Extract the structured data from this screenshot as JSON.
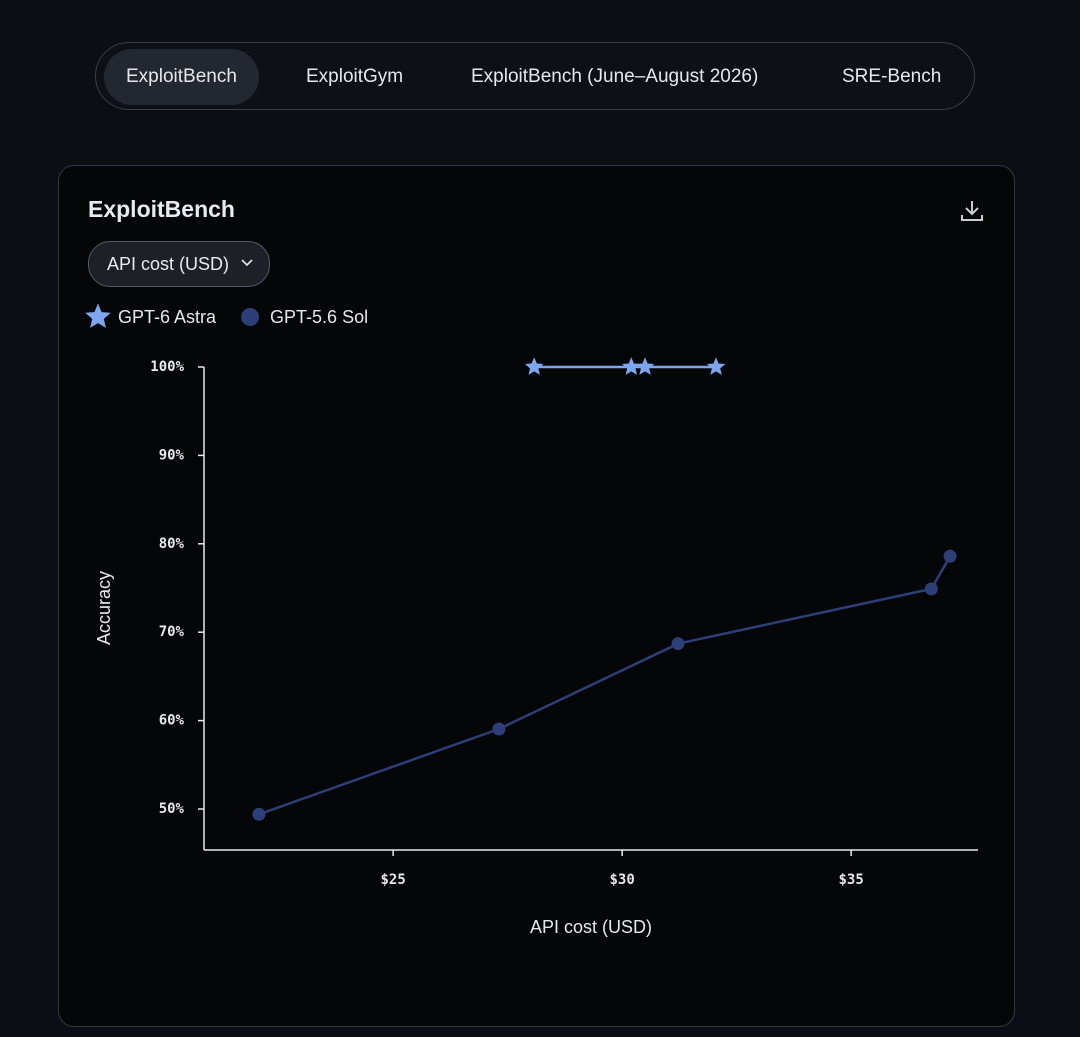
{
  "tabs": [
    "ExploitBench",
    "ExploitGym",
    "ExploitBench (June–August 2026)",
    "SRE-Bench"
  ],
  "active_tab": 0,
  "card": {
    "title": "ExploitBench",
    "dropdown": "API cost (USD)"
  },
  "chart_data": {
    "type": "line",
    "x_label": "API cost (USD)",
    "y_label": "Accuracy",
    "xlim": [
      20.87,
      37.77
    ],
    "ylim": [
      45.36,
      100
    ],
    "xticks": [
      {
        "value": 25,
        "label": "$25"
      },
      {
        "value": 30,
        "label": "$30"
      },
      {
        "value": 35,
        "label": "$35"
      }
    ],
    "yticks": [
      {
        "value": 50,
        "label": "50%"
      },
      {
        "value": 60,
        "label": "60%"
      },
      {
        "value": 70,
        "label": "70%"
      },
      {
        "value": 80,
        "label": "80%"
      },
      {
        "value": 90,
        "label": "90%"
      },
      {
        "value": 100,
        "label": "100%"
      }
    ],
    "grid": false,
    "legend": "top-left",
    "series": [
      {
        "name": "GPT-6 Astra",
        "color": "#7ea6ee",
        "marker": "star",
        "x": [
          28.08,
          30.2,
          30.5,
          32.05
        ],
        "values": [
          100,
          100,
          100,
          100
        ]
      },
      {
        "name": "GPT-5.6 Sol",
        "color": "#2c3f78",
        "marker": "circle",
        "x": [
          22.07,
          27.31,
          31.22,
          36.75,
          37.16
        ],
        "values": [
          49.4,
          59.05,
          68.7,
          74.9,
          78.6
        ]
      }
    ]
  }
}
